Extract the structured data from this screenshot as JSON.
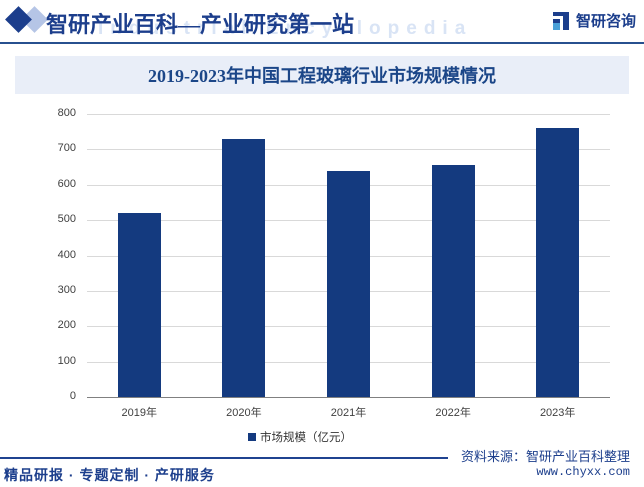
{
  "header": {
    "site_title": "智研产业百科—产业研究第一站",
    "watermark_text": "Industrial Encyclopedia",
    "brand_name": "智研咨询"
  },
  "chart_data": {
    "type": "bar",
    "title": "2019-2023年中国工程玻璃行业市场规模情况",
    "categories": [
      "2019年",
      "2020年",
      "2021年",
      "2022年",
      "2023年"
    ],
    "series": [
      {
        "name": "市场规模（亿元）",
        "values": [
          520,
          730,
          640,
          655,
          760
        ],
        "color": "#143a7f"
      }
    ],
    "xlabel": "",
    "ylabel": "",
    "ylim": [
      0,
      800
    ],
    "ytick_interval": 100,
    "grid": true,
    "legend_position": "bottom"
  },
  "footer": {
    "services_text": "精品研报 · 专题定制 · 产研服务",
    "source_text": "资料来源：智研产业百科整理",
    "website": "www.chyxx.com"
  },
  "colors": {
    "brand_navy": "#1c3e8c",
    "bar_navy": "#143a7f",
    "banner_bg": "#e9eef8",
    "gridline": "#d9d9d9",
    "axis_line": "#808080",
    "watermark": "#d9e4f5"
  }
}
